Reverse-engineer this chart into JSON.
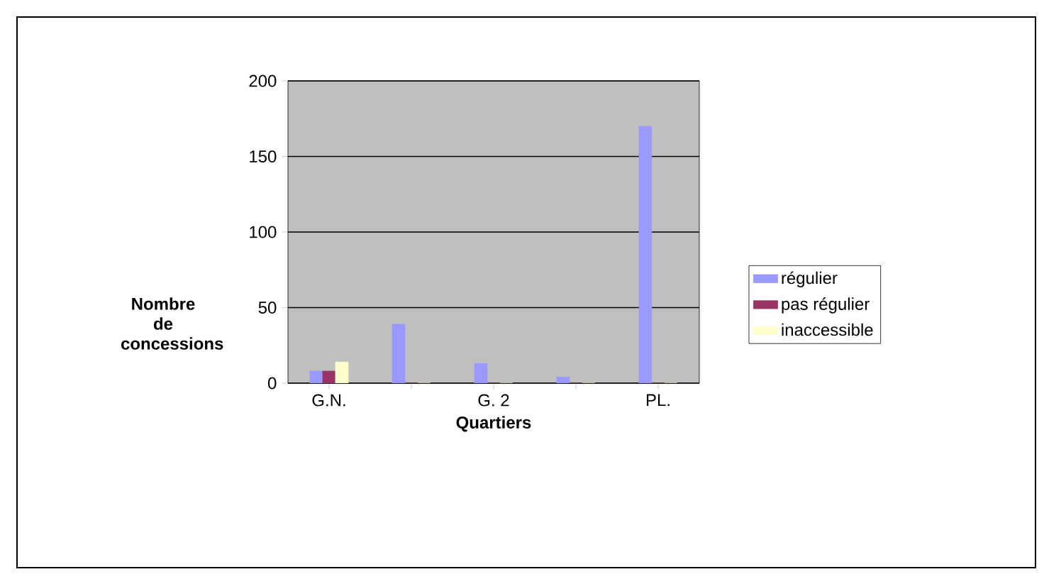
{
  "chart_data": {
    "type": "bar",
    "xlabel": "Quartiers",
    "ylabel": "Nombre de concessions",
    "categories": [
      "G.N.",
      null,
      "G. 2",
      null,
      "PL."
    ],
    "series": [
      {
        "name": "régulier",
        "color": "#9999ff",
        "values": [
          8,
          39,
          13,
          4,
          170
        ]
      },
      {
        "name": "pas régulier",
        "color": "#993366",
        "values": [
          8,
          0,
          0,
          0,
          0
        ]
      },
      {
        "name": "inaccessible",
        "color": "#ffffcc",
        "values": [
          14,
          0,
          0,
          0,
          0
        ]
      }
    ],
    "ylim": [
      0,
      200
    ],
    "yticks": [
      0,
      50,
      100,
      150,
      200
    ],
    "grid": "y",
    "legend": "right"
  }
}
